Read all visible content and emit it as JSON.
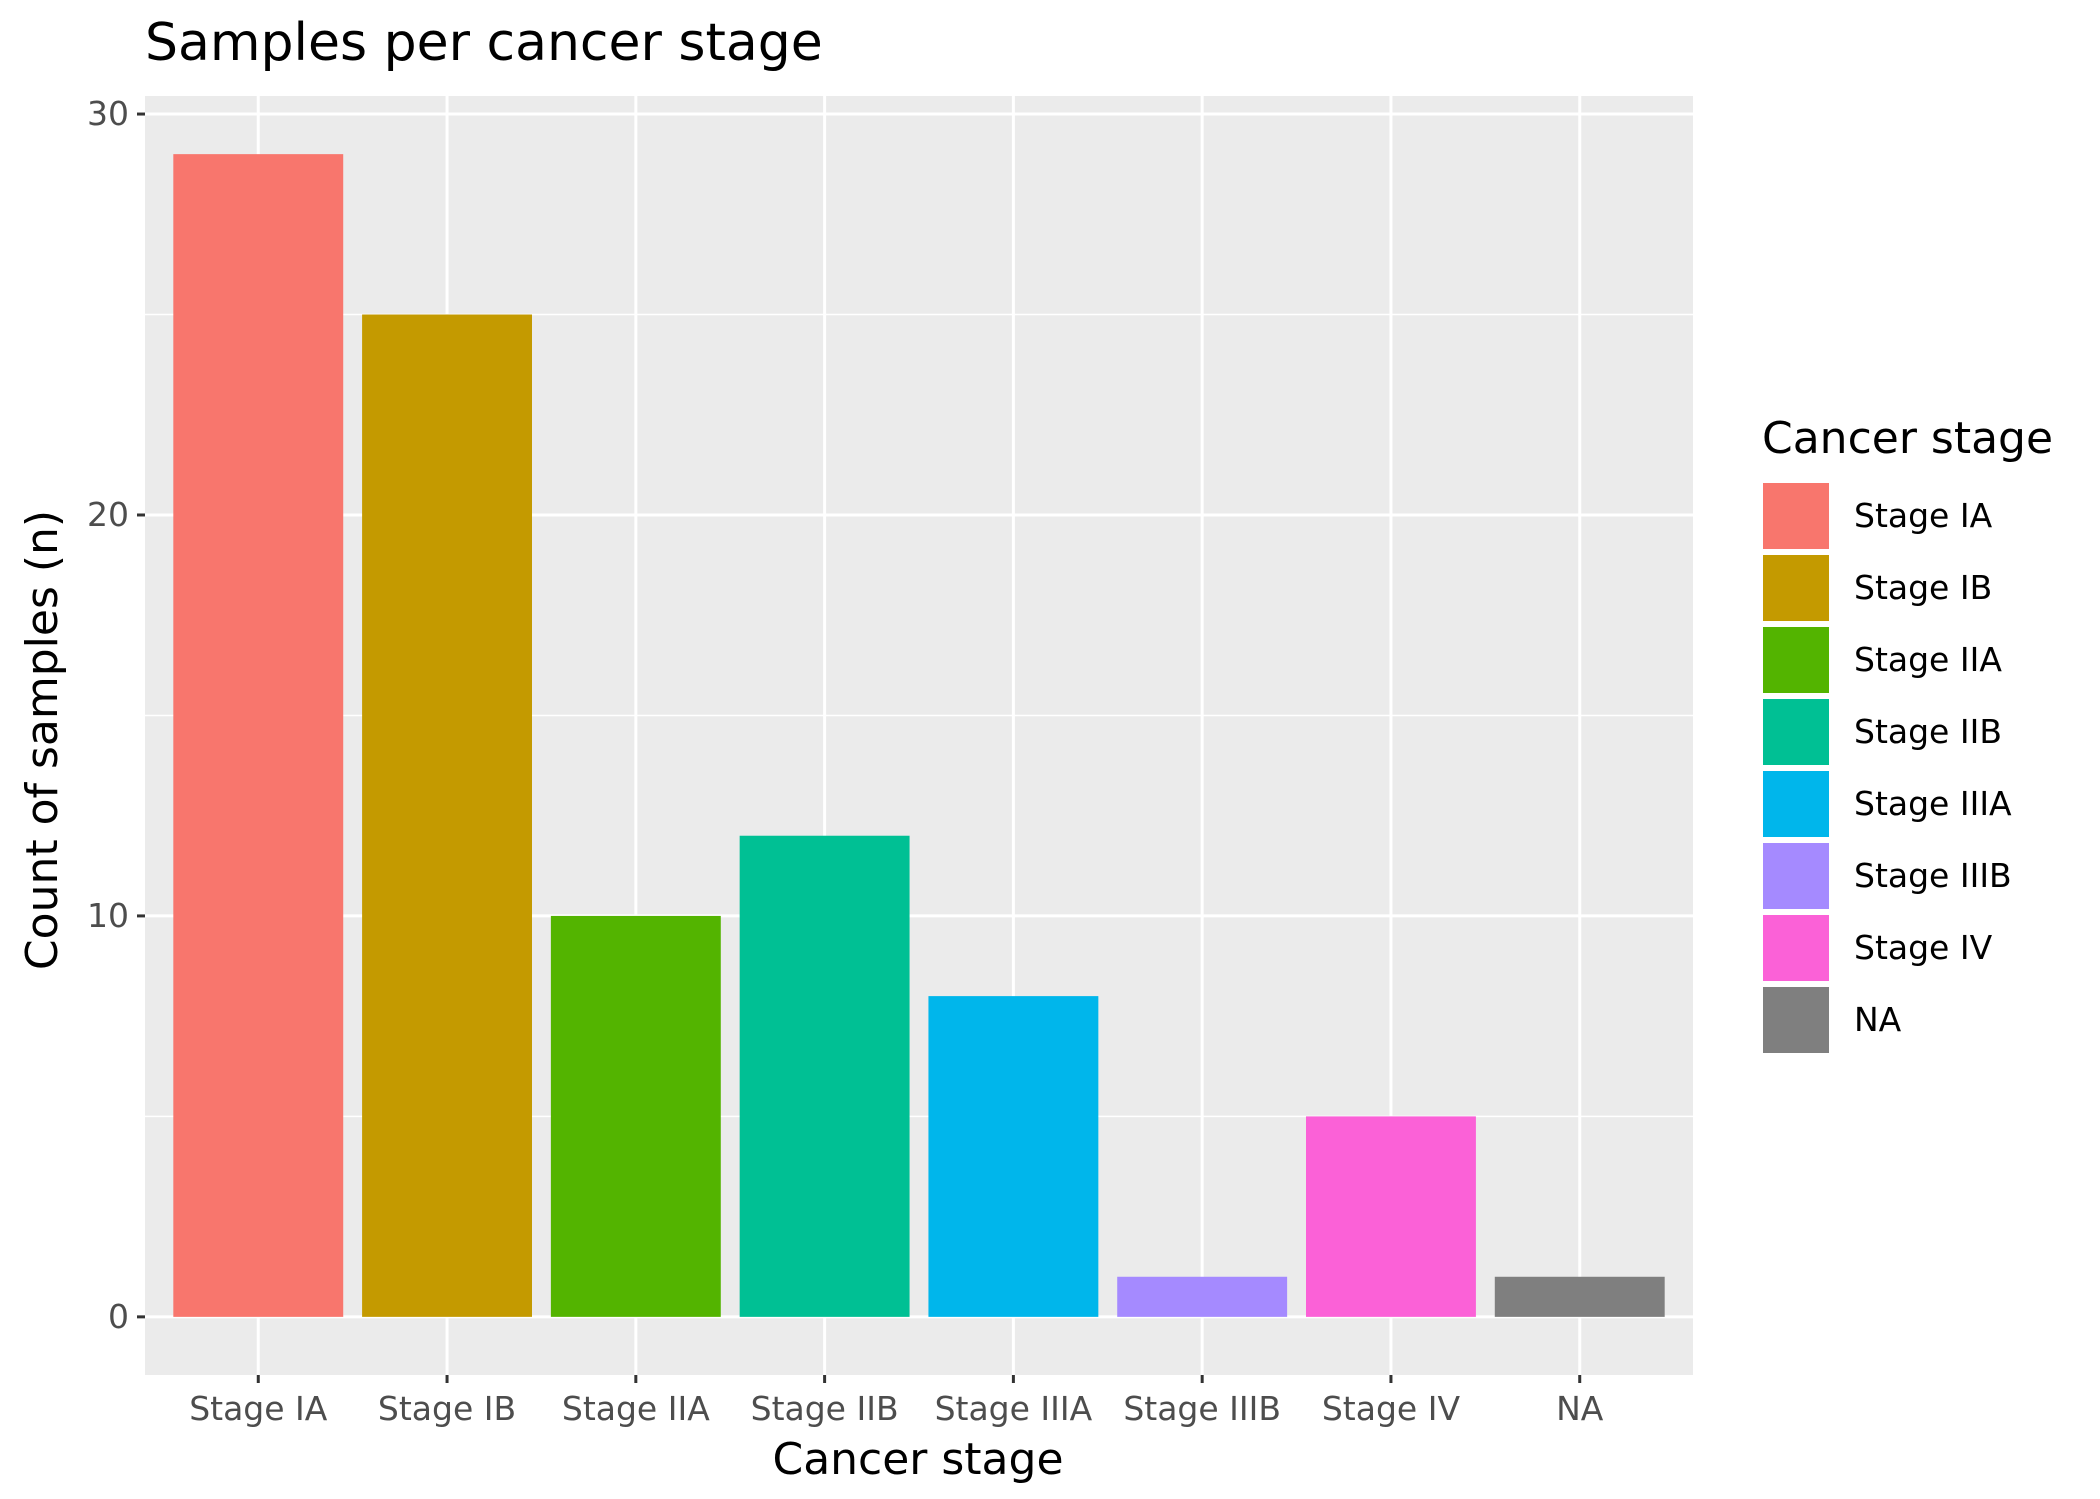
{
  "chart_data": {
    "type": "bar",
    "title": "Samples per cancer stage",
    "xlabel": "Cancer stage",
    "ylabel": "Count of samples (n)",
    "categories": [
      "Stage IA",
      "Stage IB",
      "Stage IIA",
      "Stage IIB",
      "Stage IIIA",
      "Stage IIIB",
      "Stage IV",
      "NA"
    ],
    "values": [
      29,
      25,
      10,
      12,
      8,
      1,
      5,
      1
    ],
    "colors": [
      "#F8766D",
      "#C49A00",
      "#53B400",
      "#00C094",
      "#00B6EB",
      "#A58AFF",
      "#FB61D7",
      "#7F7F7F"
    ],
    "ylim": [
      -1.45,
      30.45
    ],
    "yticks": [
      0,
      10,
      20,
      30
    ],
    "grid": true,
    "legend": {
      "title": "Cancer stage",
      "position": "right",
      "entries": [
        "Stage IA",
        "Stage IB",
        "Stage IIA",
        "Stage IIB",
        "Stage IIIA",
        "Stage IIIB",
        "Stage IV",
        "NA"
      ]
    },
    "panel_background": "#EBEBEB",
    "grid_color": "#FFFFFF"
  }
}
